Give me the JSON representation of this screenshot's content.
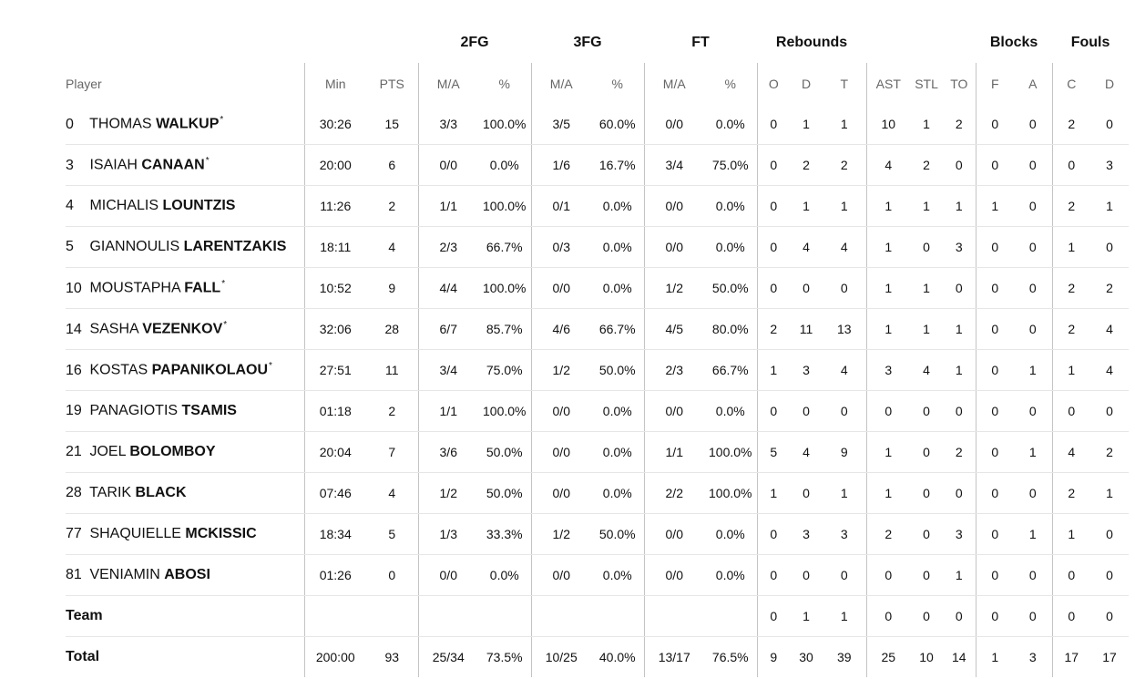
{
  "groups": {
    "fg2": "2FG",
    "fg3": "3FG",
    "ft": "FT",
    "rebounds": "Rebounds",
    "blocks": "Blocks",
    "fouls": "Fouls"
  },
  "columns": {
    "player": "Player",
    "min": "Min",
    "pts": "PTS",
    "fg2_ma": "M/A",
    "fg2_pct": "%",
    "fg3_ma": "M/A",
    "fg3_pct": "%",
    "ft_ma": "M/A",
    "ft_pct": "%",
    "reb_o": "O",
    "reb_d": "D",
    "reb_t": "T",
    "ast": "AST",
    "stl": "STL",
    "to": "TO",
    "blk_f": "F",
    "blk_a": "A",
    "foul_c": "C",
    "foul_d": "D"
  },
  "players": [
    {
      "num": "0",
      "first": "THOMAS",
      "last": "WALKUP",
      "starter": "*",
      "min": "30:26",
      "pts": "15",
      "fg2_ma": "3/3",
      "fg2_pct": "100.0%",
      "fg3_ma": "3/5",
      "fg3_pct": "60.0%",
      "ft_ma": "0/0",
      "ft_pct": "0.0%",
      "reb_o": "0",
      "reb_d": "1",
      "reb_t": "1",
      "ast": "10",
      "stl": "1",
      "to": "2",
      "blk_f": "0",
      "blk_a": "0",
      "foul_c": "2",
      "foul_d": "0"
    },
    {
      "num": "3",
      "first": "ISAIAH",
      "last": "CANAAN",
      "starter": "*",
      "min": "20:00",
      "pts": "6",
      "fg2_ma": "0/0",
      "fg2_pct": "0.0%",
      "fg3_ma": "1/6",
      "fg3_pct": "16.7%",
      "ft_ma": "3/4",
      "ft_pct": "75.0%",
      "reb_o": "0",
      "reb_d": "2",
      "reb_t": "2",
      "ast": "4",
      "stl": "2",
      "to": "0",
      "blk_f": "0",
      "blk_a": "0",
      "foul_c": "0",
      "foul_d": "3"
    },
    {
      "num": "4",
      "first": "MICHALIS",
      "last": "LOUNTZIS",
      "starter": "",
      "min": "11:26",
      "pts": "2",
      "fg2_ma": "1/1",
      "fg2_pct": "100.0%",
      "fg3_ma": "0/1",
      "fg3_pct": "0.0%",
      "ft_ma": "0/0",
      "ft_pct": "0.0%",
      "reb_o": "0",
      "reb_d": "1",
      "reb_t": "1",
      "ast": "1",
      "stl": "1",
      "to": "1",
      "blk_f": "1",
      "blk_a": "0",
      "foul_c": "2",
      "foul_d": "1"
    },
    {
      "num": "5",
      "first": "GIANNOULIS",
      "last": "LARENTZAKIS",
      "starter": "",
      "min": "18:11",
      "pts": "4",
      "fg2_ma": "2/3",
      "fg2_pct": "66.7%",
      "fg3_ma": "0/3",
      "fg3_pct": "0.0%",
      "ft_ma": "0/0",
      "ft_pct": "0.0%",
      "reb_o": "0",
      "reb_d": "4",
      "reb_t": "4",
      "ast": "1",
      "stl": "0",
      "to": "3",
      "blk_f": "0",
      "blk_a": "0",
      "foul_c": "1",
      "foul_d": "0"
    },
    {
      "num": "10",
      "first": "MOUSTAPHA",
      "last": "FALL",
      "starter": "*",
      "min": "10:52",
      "pts": "9",
      "fg2_ma": "4/4",
      "fg2_pct": "100.0%",
      "fg3_ma": "0/0",
      "fg3_pct": "0.0%",
      "ft_ma": "1/2",
      "ft_pct": "50.0%",
      "reb_o": "0",
      "reb_d": "0",
      "reb_t": "0",
      "ast": "1",
      "stl": "1",
      "to": "0",
      "blk_f": "0",
      "blk_a": "0",
      "foul_c": "2",
      "foul_d": "2"
    },
    {
      "num": "14",
      "first": "SASHA",
      "last": "VEZENKOV",
      "starter": "*",
      "min": "32:06",
      "pts": "28",
      "fg2_ma": "6/7",
      "fg2_pct": "85.7%",
      "fg3_ma": "4/6",
      "fg3_pct": "66.7%",
      "ft_ma": "4/5",
      "ft_pct": "80.0%",
      "reb_o": "2",
      "reb_d": "11",
      "reb_t": "13",
      "ast": "1",
      "stl": "1",
      "to": "1",
      "blk_f": "0",
      "blk_a": "0",
      "foul_c": "2",
      "foul_d": "4"
    },
    {
      "num": "16",
      "first": "KOSTAS",
      "last": "PAPANIKOLAOU",
      "starter": "*",
      "min": "27:51",
      "pts": "11",
      "fg2_ma": "3/4",
      "fg2_pct": "75.0%",
      "fg3_ma": "1/2",
      "fg3_pct": "50.0%",
      "ft_ma": "2/3",
      "ft_pct": "66.7%",
      "reb_o": "1",
      "reb_d": "3",
      "reb_t": "4",
      "ast": "3",
      "stl": "4",
      "to": "1",
      "blk_f": "0",
      "blk_a": "1",
      "foul_c": "1",
      "foul_d": "4"
    },
    {
      "num": "19",
      "first": "PANAGIOTIS",
      "last": "TSAMIS",
      "starter": "",
      "min": "01:18",
      "pts": "2",
      "fg2_ma": "1/1",
      "fg2_pct": "100.0%",
      "fg3_ma": "0/0",
      "fg3_pct": "0.0%",
      "ft_ma": "0/0",
      "ft_pct": "0.0%",
      "reb_o": "0",
      "reb_d": "0",
      "reb_t": "0",
      "ast": "0",
      "stl": "0",
      "to": "0",
      "blk_f": "0",
      "blk_a": "0",
      "foul_c": "0",
      "foul_d": "0"
    },
    {
      "num": "21",
      "first": "JOEL",
      "last": "BOLOMBOY",
      "starter": "",
      "min": "20:04",
      "pts": "7",
      "fg2_ma": "3/6",
      "fg2_pct": "50.0%",
      "fg3_ma": "0/0",
      "fg3_pct": "0.0%",
      "ft_ma": "1/1",
      "ft_pct": "100.0%",
      "reb_o": "5",
      "reb_d": "4",
      "reb_t": "9",
      "ast": "1",
      "stl": "0",
      "to": "2",
      "blk_f": "0",
      "blk_a": "1",
      "foul_c": "4",
      "foul_d": "2"
    },
    {
      "num": "28",
      "first": "TARIK",
      "last": "BLACK",
      "starter": "",
      "min": "07:46",
      "pts": "4",
      "fg2_ma": "1/2",
      "fg2_pct": "50.0%",
      "fg3_ma": "0/0",
      "fg3_pct": "0.0%",
      "ft_ma": "2/2",
      "ft_pct": "100.0%",
      "reb_o": "1",
      "reb_d": "0",
      "reb_t": "1",
      "ast": "1",
      "stl": "0",
      "to": "0",
      "blk_f": "0",
      "blk_a": "0",
      "foul_c": "2",
      "foul_d": "1"
    },
    {
      "num": "77",
      "first": "SHAQUIELLE",
      "last": "MCKISSIC",
      "starter": "",
      "min": "18:34",
      "pts": "5",
      "fg2_ma": "1/3",
      "fg2_pct": "33.3%",
      "fg3_ma": "1/2",
      "fg3_pct": "50.0%",
      "ft_ma": "0/0",
      "ft_pct": "0.0%",
      "reb_o": "0",
      "reb_d": "3",
      "reb_t": "3",
      "ast": "2",
      "stl": "0",
      "to": "3",
      "blk_f": "0",
      "blk_a": "1",
      "foul_c": "1",
      "foul_d": "0"
    },
    {
      "num": "81",
      "first": "VENIAMIN",
      "last": "ABOSI",
      "starter": "",
      "min": "01:26",
      "pts": "0",
      "fg2_ma": "0/0",
      "fg2_pct": "0.0%",
      "fg3_ma": "0/0",
      "fg3_pct": "0.0%",
      "ft_ma": "0/0",
      "ft_pct": "0.0%",
      "reb_o": "0",
      "reb_d": "0",
      "reb_t": "0",
      "ast": "0",
      "stl": "0",
      "to": "1",
      "blk_f": "0",
      "blk_a": "0",
      "foul_c": "0",
      "foul_d": "0"
    }
  ],
  "team": {
    "label": "Team",
    "reb_o": "0",
    "reb_d": "1",
    "reb_t": "1",
    "ast": "0",
    "stl": "0",
    "to": "0",
    "blk_f": "0",
    "blk_a": "0",
    "foul_c": "0",
    "foul_d": "0"
  },
  "total": {
    "label": "Total",
    "min": "200:00",
    "pts": "93",
    "fg2_ma": "25/34",
    "fg2_pct": "73.5%",
    "fg3_ma": "10/25",
    "fg3_pct": "40.0%",
    "ft_ma": "13/17",
    "ft_pct": "76.5%",
    "reb_o": "9",
    "reb_d": "30",
    "reb_t": "39",
    "ast": "25",
    "stl": "10",
    "to": "14",
    "blk_f": "1",
    "blk_a": "3",
    "foul_c": "17",
    "foul_d": "17"
  }
}
